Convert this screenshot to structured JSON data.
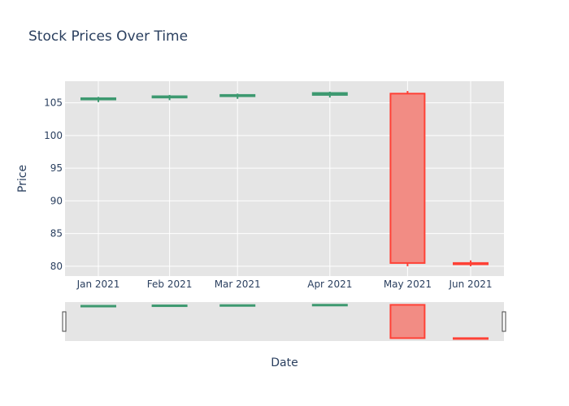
{
  "chart_data": {
    "type": "candlestick",
    "title": "Stock Prices Over Time",
    "xlabel": "Date",
    "ylabel": "Price",
    "x": [
      "2021-01",
      "2021-02",
      "2021-03",
      "2021-04",
      "2021-05",
      "2021-06"
    ],
    "x_tick_labels": [
      "Jan 2021",
      "Feb 2021",
      "Mar 2021",
      "Apr 2021",
      "May 2021",
      "Jun 2021"
    ],
    "ohlc": [
      {
        "date": "2021-01",
        "open": 105.5,
        "high": 105.9,
        "low": 105.1,
        "close": 105.7
      },
      {
        "date": "2021-02",
        "open": 105.8,
        "high": 106.2,
        "low": 105.4,
        "close": 106.0
      },
      {
        "date": "2021-03",
        "open": 106.0,
        "high": 106.4,
        "low": 105.6,
        "close": 106.2
      },
      {
        "date": "2021-04",
        "open": 106.2,
        "high": 106.7,
        "low": 105.8,
        "close": 106.5
      },
      {
        "date": "2021-05",
        "open": 106.4,
        "high": 106.8,
        "low": 80.0,
        "close": 80.5
      },
      {
        "date": "2021-06",
        "open": 80.5,
        "high": 80.9,
        "low": 80.0,
        "close": 80.3
      }
    ],
    "y_ticks": [
      80,
      85,
      90,
      95,
      100,
      105
    ],
    "ylim": [
      78.5,
      108.3
    ],
    "grid": true,
    "rangeslider": true,
    "colors": {
      "increasing": "#3d9970",
      "decreasing": "#ff4136",
      "decreasing_fill": "#f28c84",
      "plot_bg": "#e5e5e5",
      "grid": "#ffffff",
      "text": "#2a3f5f"
    }
  }
}
